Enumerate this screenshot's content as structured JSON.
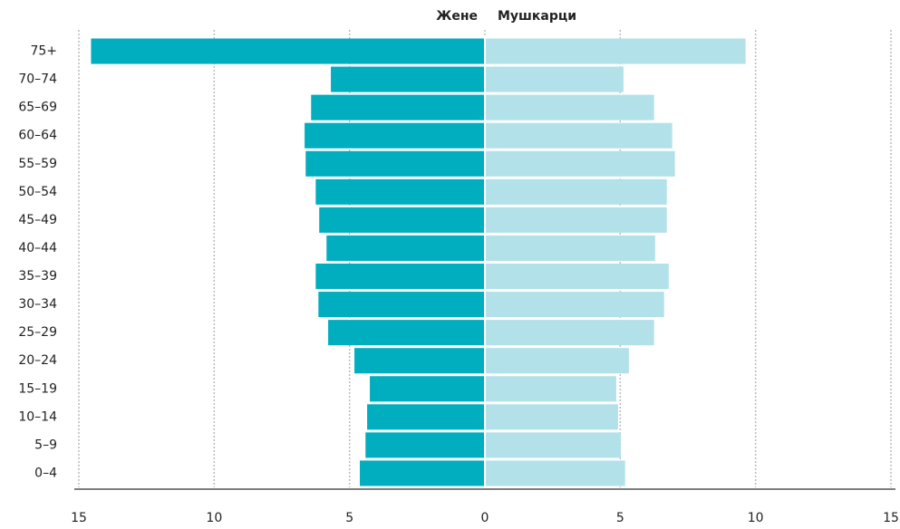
{
  "chart_data": {
    "type": "pyramid",
    "categories": [
      "75+",
      "70–74",
      "65–69",
      "60–64",
      "55–59",
      "50–54",
      "45–49",
      "40–44",
      "35–39",
      "30–34",
      "25–29",
      "20–24",
      "15–19",
      "10–14",
      "5–9",
      "0–4"
    ],
    "series": [
      {
        "name": "Жене",
        "color": "#00aebf",
        "values": [
          -14.55,
          -5.69,
          -6.42,
          -6.66,
          -6.62,
          -6.25,
          -6.12,
          -5.85,
          -6.25,
          -6.15,
          -5.79,
          -4.82,
          -4.25,
          -4.35,
          -4.41,
          -4.62
        ]
      },
      {
        "name": "Мушкарци",
        "color": "#b3e1e9",
        "values": [
          9.63,
          5.12,
          6.25,
          6.92,
          7.02,
          6.72,
          6.72,
          6.29,
          6.79,
          6.62,
          6.25,
          5.32,
          4.85,
          4.92,
          5.02,
          5.18
        ]
      }
    ],
    "xlim": [
      -15,
      15
    ],
    "xticks": [
      {
        "value": -15,
        "label": "15"
      },
      {
        "value": -10,
        "label": "10"
      },
      {
        "value": -5,
        "label": "5"
      },
      0,
      5,
      10,
      15
    ],
    "grid": true
  }
}
